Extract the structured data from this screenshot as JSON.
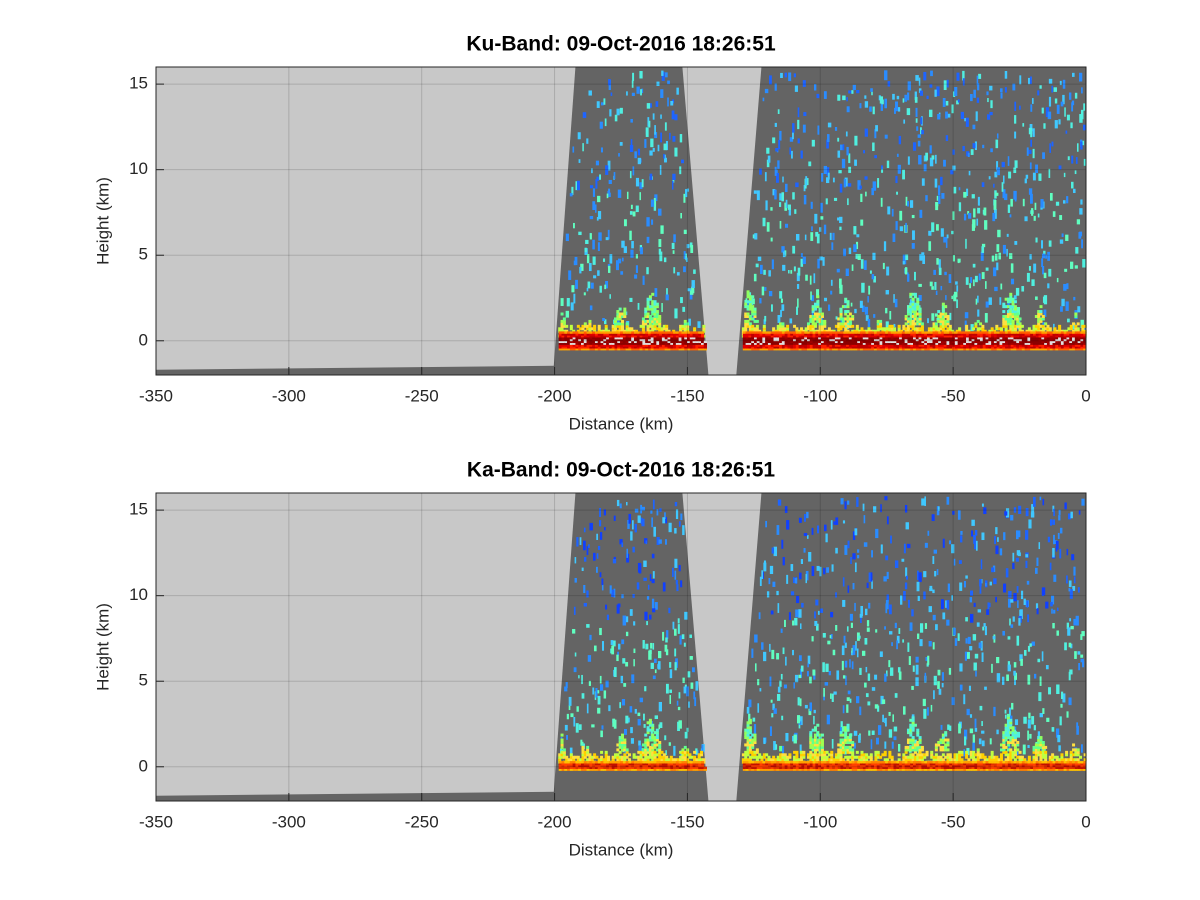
{
  "chart_data": [
    {
      "type": "heatmap",
      "title": "Ku-Band: 09-Oct-2016 18:26:51",
      "xlabel": "Distance (km)",
      "ylabel": "Height (km)",
      "xlim": [
        -350,
        0
      ],
      "ylim": [
        -2,
        16
      ],
      "xticks": [
        -350,
        -300,
        -250,
        -200,
        -150,
        -100,
        -50,
        0
      ],
      "yticks": [
        0,
        5,
        10,
        15
      ],
      "grid": true,
      "background_color": "#c8c8c8",
      "swath_color": "#646464"
    },
    {
      "type": "heatmap",
      "title": "Ka-Band: 09-Oct-2016 18:26:51",
      "xlabel": "Distance (km)",
      "ylabel": "Height (km)",
      "xlim": [
        -350,
        0
      ],
      "ylim": [
        -2,
        16
      ],
      "xticks": [
        -350,
        -300,
        -250,
        -200,
        -150,
        -100,
        -50,
        0
      ],
      "yticks": [
        0,
        5,
        10,
        15
      ],
      "grid": true,
      "background_color": "#c8c8c8",
      "swath_color": "#646464"
    }
  ]
}
